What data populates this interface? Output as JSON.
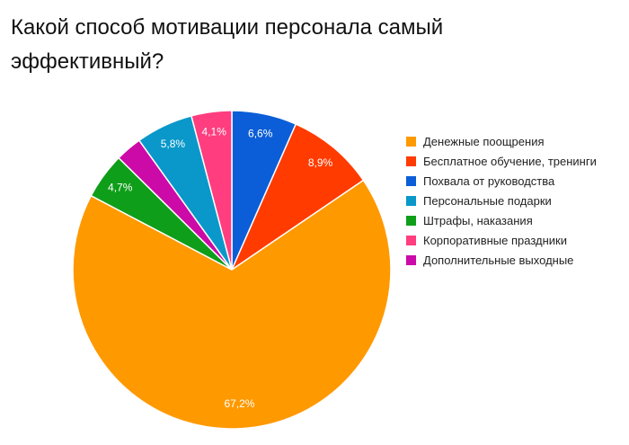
{
  "title": "Какой способ мотивации персонала самый эффективный?",
  "chart_data": {
    "type": "pie",
    "title": "Какой способ мотивации персонала самый эффективный?",
    "legend_position": "right",
    "start_angle": "top",
    "direction": "clockwise",
    "slices": [
      {
        "label": "Похвала от руководства",
        "value": 6.6,
        "display": "6,6%",
        "color": "#0b5ed7"
      },
      {
        "label": "Бесплатное обучение, тренинги",
        "value": 8.9,
        "display": "8,9%",
        "color": "#ff3b00"
      },
      {
        "label": "Денежные поощрения",
        "value": 67.2,
        "display": "67,2%",
        "color": "#ff9900"
      },
      {
        "label": "Штрафы, наказания",
        "value": 4.7,
        "display": "4,7%",
        "color": "#0f9e1a"
      },
      {
        "label": "Дополнительные выходные",
        "value": 2.7,
        "display": "",
        "color": "#cc0aa8"
      },
      {
        "label": "Персональные подарки",
        "value": 5.8,
        "display": "5,8%",
        "color": "#0998c9"
      },
      {
        "label": "Корпоративные праздники",
        "value": 4.1,
        "display": "4,1%",
        "color": "#ff3d7f"
      }
    ],
    "legend": [
      {
        "label": "Денежные поощрения",
        "color": "#ff9900"
      },
      {
        "label": "Бесплатное обучение, тренинги",
        "color": "#ff3b00"
      },
      {
        "label": "Похвала от руководства",
        "color": "#0b5ed7"
      },
      {
        "label": "Персональные подарки",
        "color": "#0998c9"
      },
      {
        "label": "Штрафы, наказания",
        "color": "#0f9e1a"
      },
      {
        "label": "Корпоративные праздники",
        "color": "#ff3d7f"
      },
      {
        "label": "Дополнительные выходные",
        "color": "#cc0aa8"
      }
    ]
  }
}
